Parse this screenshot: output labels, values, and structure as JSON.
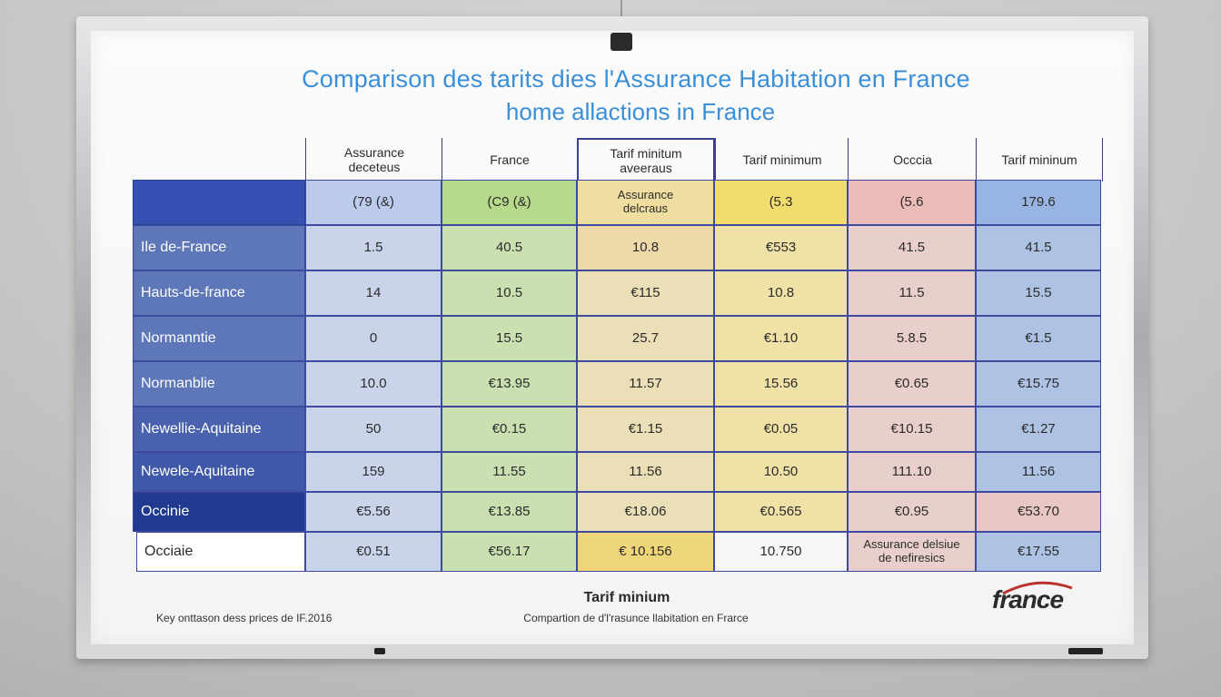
{
  "title": "Comparison des tarits dies l'Assurance Habitation en France",
  "subtitle": "home allactions in France",
  "table": {
    "headers": [
      "Assurance\ndeceteus",
      "France",
      "Tarif minitum\naveeraus",
      "Tarif minimum",
      "Occcia",
      "Tarif mininum"
    ],
    "top_row": [
      "(79 (&)",
      "(C9 (&)",
      "Assurance\ndelcraus",
      "(5.3",
      "(5.6",
      "179.6"
    ],
    "rows": [
      {
        "label": "Ile de-France",
        "cells": [
          "1.5",
          "40.5",
          "10.8",
          "€553",
          "41.5",
          "41.5"
        ]
      },
      {
        "label": "Hauts-de-france",
        "cells": [
          "14",
          "10.5",
          "€115",
          "10.8",
          "11.5",
          "15.5"
        ]
      },
      {
        "label": "Normanntie",
        "cells": [
          "0",
          "15.5",
          "25.7",
          "€1.10",
          "5.8.5",
          "€1.5"
        ]
      },
      {
        "label": "Normanblie",
        "cells": [
          "10.0",
          "€13.95",
          "11.57",
          "15.56",
          "€0.65",
          "€15.75"
        ]
      },
      {
        "label": "Newellie-Aquitaine",
        "cells": [
          "50",
          "€0.15",
          "€1.15",
          "€0.05",
          "€10.15",
          "€1.27"
        ]
      },
      {
        "label": "Newele-Aquitaine",
        "cells": [
          "159",
          "11.55",
          "11.56",
          "10.50",
          "111.10",
          "11.56"
        ]
      },
      {
        "label": "Occinie",
        "cells": [
          "€5.56",
          "€13.85",
          "€18.06",
          "€0.565",
          "€0.95",
          "€53.70"
        ]
      },
      {
        "label": "Occiaie",
        "cells": [
          "€0.51",
          "€56.17",
          "€ 10.156",
          "10.750",
          "Assurance delsiue\nde nefiresics",
          "€17.55"
        ]
      }
    ]
  },
  "footer": {
    "left": "Key onttason dess prices de IF.2016",
    "center_title": "Tarif minium",
    "center": "Compartion de d'l'rasunce llabitation en Frarce",
    "logo": "france"
  },
  "colors": {
    "title": "#3a8fd6",
    "row_label_dark": "#203a8f",
    "row_label_mid": "#5e77b8",
    "grid_line": "#3d4aa0"
  }
}
